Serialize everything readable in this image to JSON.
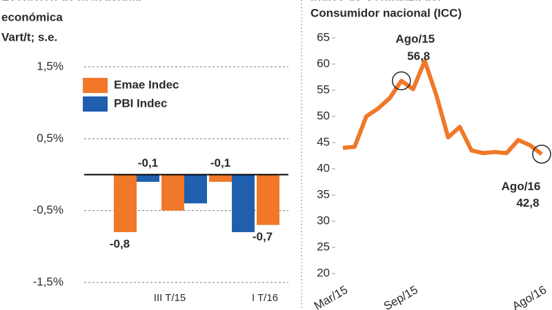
{
  "chart_data": [
    {
      "type": "bar",
      "title": [
        "Evolución de la actividad",
        "económica"
      ],
      "subtitle": "Vart/t; s.e.",
      "categories": [
        null,
        "III T/15",
        null,
        "I T/16"
      ],
      "series": [
        {
          "name": "Emae Indec",
          "color": "#f07828",
          "values": [
            -0.8,
            -0.5,
            -0.1,
            -0.7
          ],
          "value_labels": [
            "-0,8",
            null,
            "-0,1",
            "-0,7"
          ]
        },
        {
          "name": "PBI Indec",
          "color": "#1f5fae",
          "values": [
            -0.1,
            -0.4,
            -0.8,
            null
          ],
          "value_labels": [
            "-0,1",
            null,
            null,
            null
          ]
        }
      ],
      "ylim": [
        -1.5,
        1.5
      ],
      "yticks": [
        {
          "value": 1.5,
          "label": "1,5%"
        },
        {
          "value": 0.5,
          "label": "0,5%"
        },
        {
          "value": -0.5,
          "label": "-0,5%"
        },
        {
          "value": -1.5,
          "label": "-1,5%"
        }
      ],
      "grid": true,
      "legend": "upper-left"
    },
    {
      "type": "line",
      "title": [
        "Índice de Confianza del",
        "Consumidor nacional (ICC)"
      ],
      "categories": [
        "Mar/15",
        null,
        null,
        null,
        null,
        null,
        "Sep/15",
        null,
        null,
        null,
        null,
        null,
        null,
        null,
        null,
        null,
        null,
        "Ago/16"
      ],
      "series": [
        {
          "name": "ICC",
          "color": "#f07828",
          "values": [
            44,
            44.2,
            50,
            51.5,
            53.5,
            56.8,
            55.2,
            60.6,
            54,
            46,
            48,
            43.5,
            43,
            43.2,
            43,
            45.5,
            44.5,
            42.8
          ],
          "value_labels": [
            null,
            null,
            null,
            null,
            null,
            "56,8",
            null,
            null,
            null,
            null,
            null,
            null,
            null,
            null,
            null,
            null,
            null,
            "42,8"
          ]
        }
      ],
      "annotations": [
        "Ago/15",
        "Ago/16"
      ],
      "ylim": [
        20,
        65
      ],
      "yticks": [
        20,
        25,
        30,
        35,
        40,
        45,
        50,
        55,
        60,
        65
      ],
      "grid": false
    }
  ]
}
